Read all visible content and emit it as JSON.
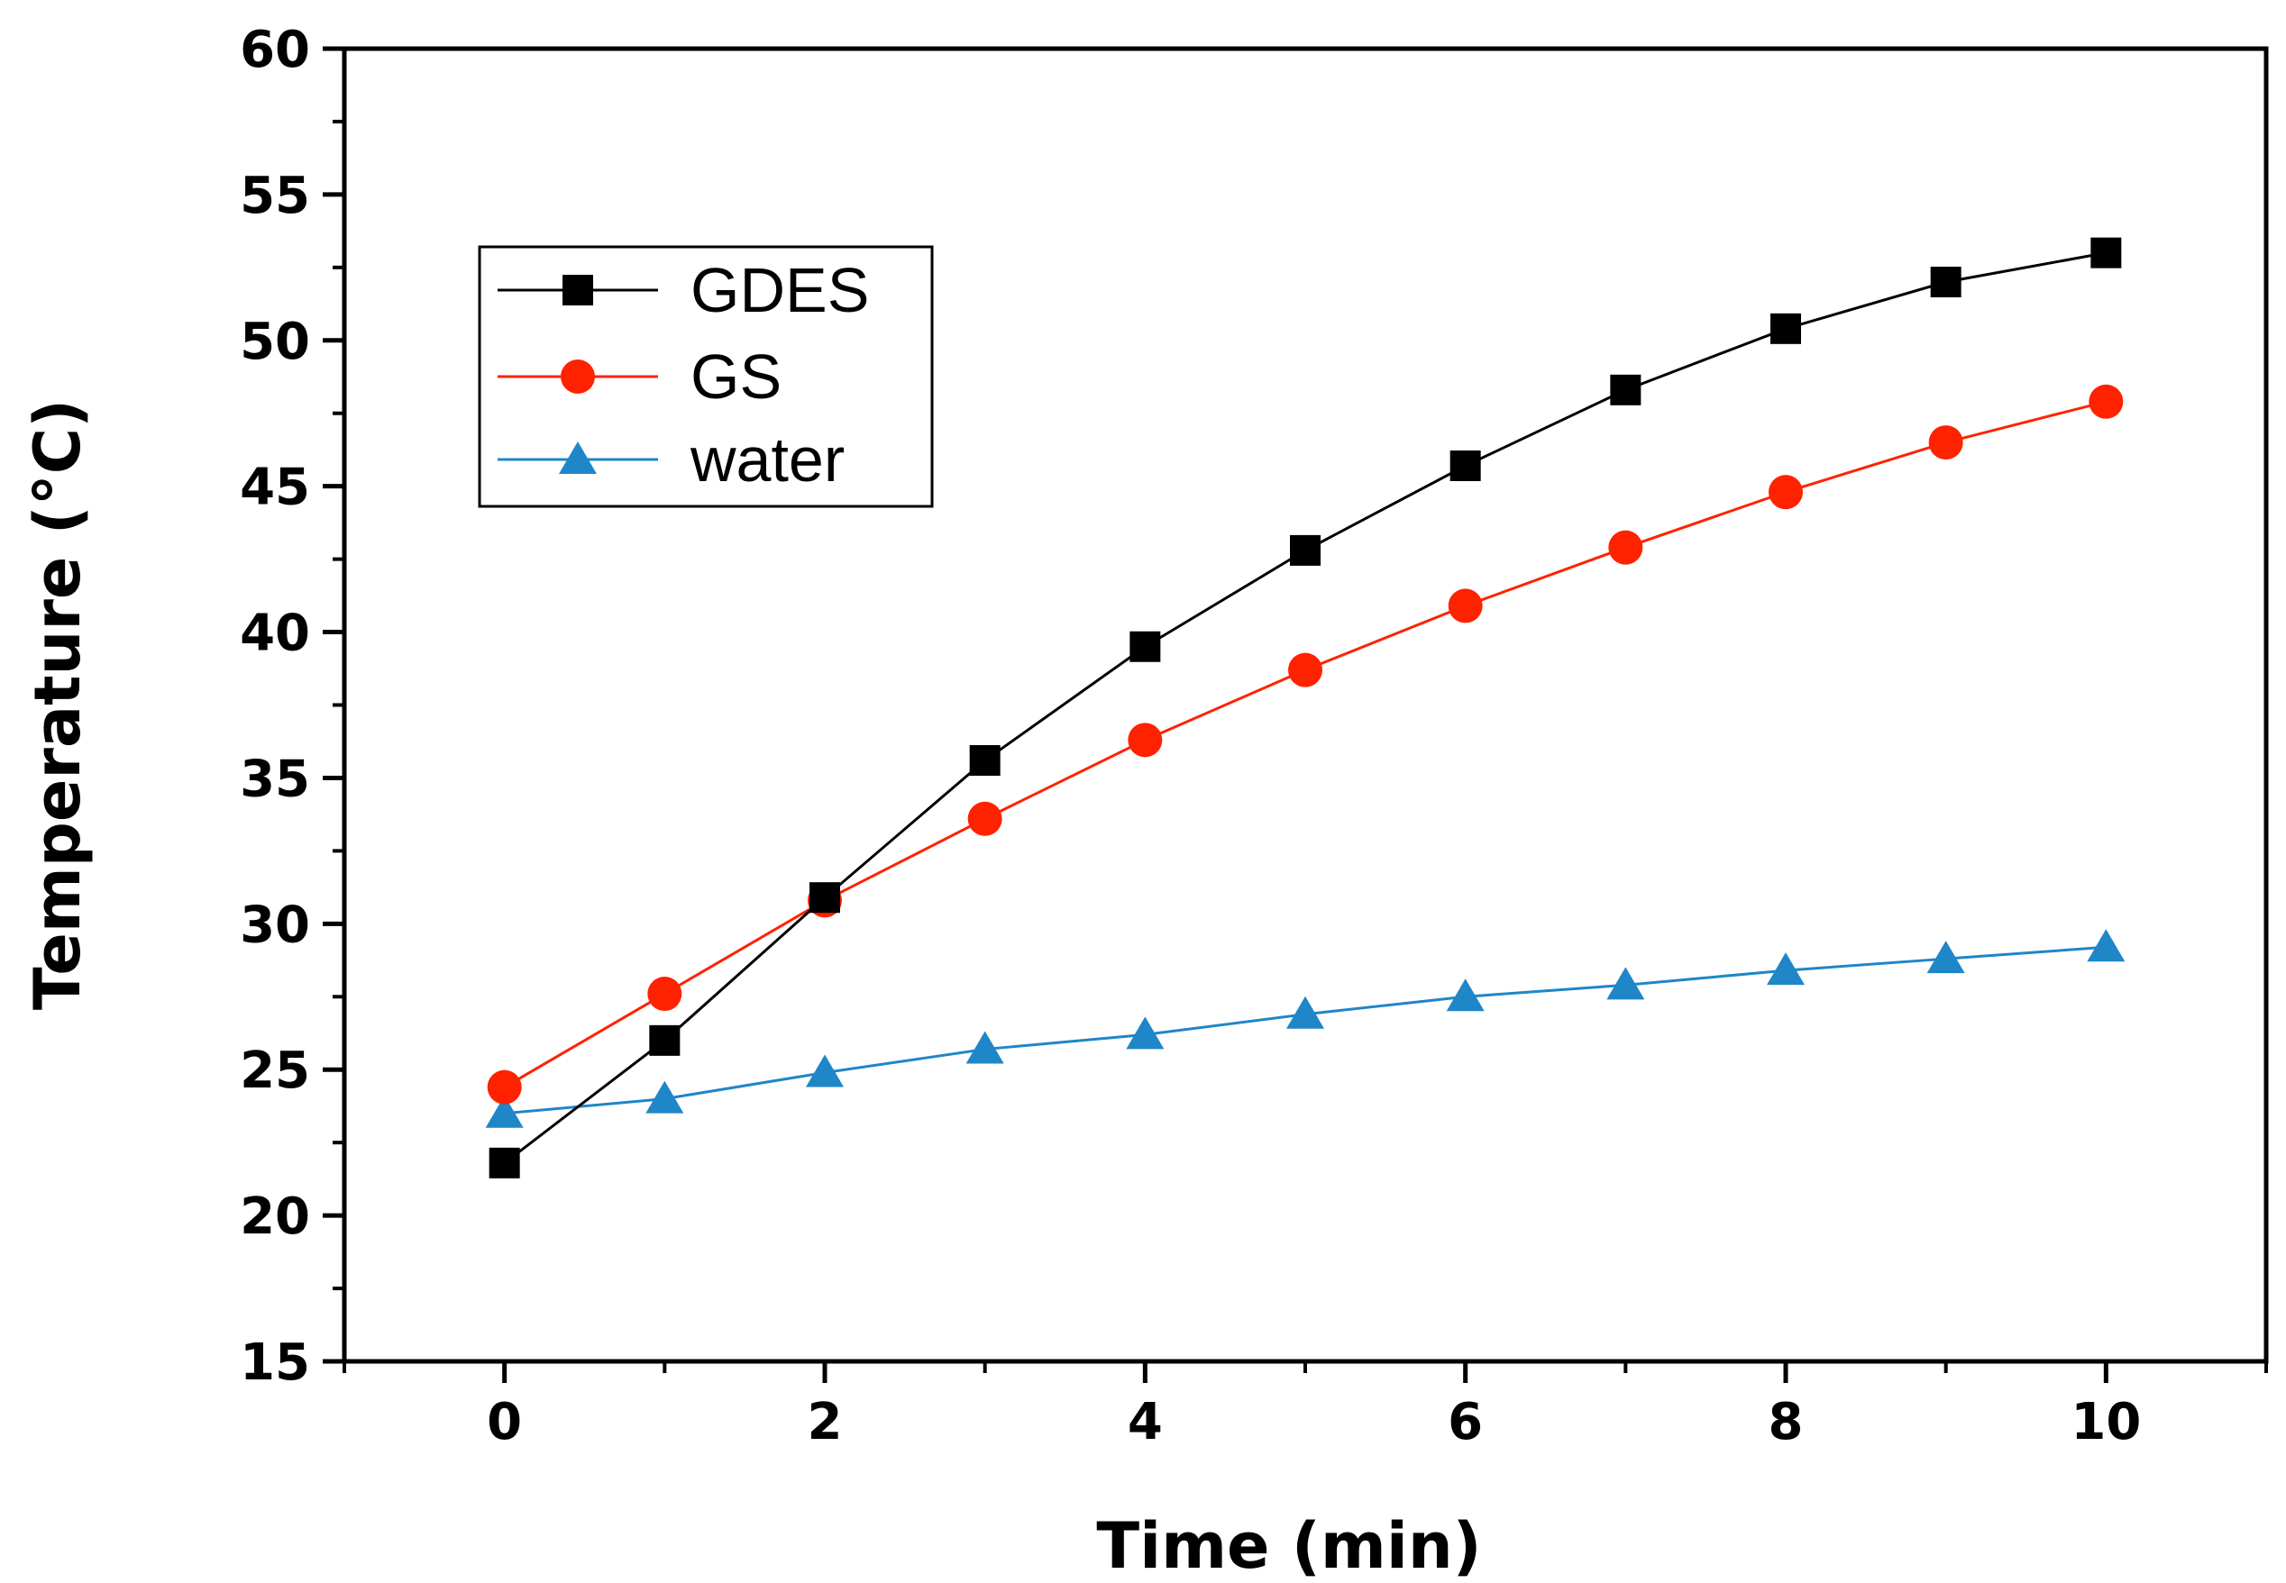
{
  "chart_data": {
    "type": "line",
    "title": "",
    "xlabel": "Time (min)",
    "ylabel": "Temperature (°C)",
    "xlim": [
      -1,
      11
    ],
    "ylim": [
      15,
      60
    ],
    "xticks": [
      0,
      2,
      4,
      6,
      8,
      10
    ],
    "yticks": [
      15,
      20,
      25,
      30,
      35,
      40,
      45,
      50,
      55,
      60
    ],
    "x": [
      0,
      1,
      2,
      3,
      4,
      5,
      6,
      7,
      8,
      9,
      10
    ],
    "grid": false,
    "legend_position": "top-left",
    "series": [
      {
        "name": "GDES",
        "marker": "square",
        "color": "#000000",
        "values": [
          21.8,
          26.0,
          30.9,
          35.6,
          39.5,
          42.8,
          45.7,
          48.3,
          50.4,
          52.0,
          53.0
        ]
      },
      {
        "name": "GS",
        "marker": "circle",
        "color": "#ff2200",
        "values": [
          24.4,
          27.6,
          30.8,
          33.6,
          36.3,
          38.7,
          40.9,
          42.9,
          44.8,
          46.5,
          47.9
        ]
      },
      {
        "name": "water",
        "marker": "triangle",
        "color": "#1f86c8",
        "values": [
          23.5,
          24.0,
          24.9,
          25.7,
          26.2,
          26.9,
          27.5,
          27.9,
          28.4,
          28.8,
          29.2
        ]
      }
    ]
  }
}
